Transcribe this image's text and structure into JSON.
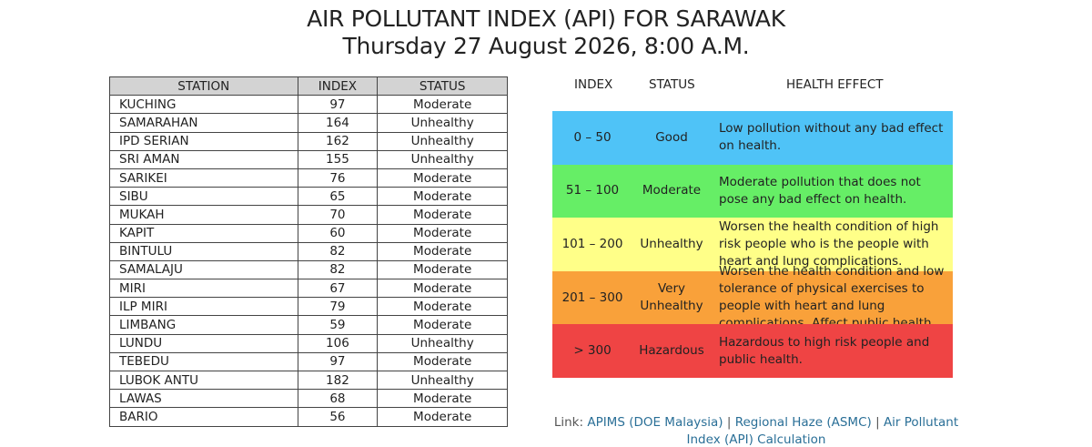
{
  "title": {
    "line1": "AIR POLLUTANT INDEX (API) FOR SARAWAK",
    "line2": "Thursday 27 August 2026, 8:00 A.M."
  },
  "station_table": {
    "headers": [
      "STATION",
      "INDEX",
      "STATUS"
    ],
    "rows": [
      {
        "station": "KUCHING",
        "index": "97",
        "status": "Moderate"
      },
      {
        "station": "SAMARAHAN",
        "index": "164",
        "status": "Unhealthy"
      },
      {
        "station": "IPD SERIAN",
        "index": "162",
        "status": "Unhealthy"
      },
      {
        "station": "SRI AMAN",
        "index": "155",
        "status": "Unhealthy"
      },
      {
        "station": "SARIKEI",
        "index": "76",
        "status": "Moderate"
      },
      {
        "station": "SIBU",
        "index": "65",
        "status": "Moderate"
      },
      {
        "station": "MUKAH",
        "index": "70",
        "status": "Moderate"
      },
      {
        "station": "KAPIT",
        "index": "60",
        "status": "Moderate"
      },
      {
        "station": "BINTULU",
        "index": "82",
        "status": "Moderate"
      },
      {
        "station": "SAMALAJU",
        "index": "82",
        "status": "Moderate"
      },
      {
        "station": "MIRI",
        "index": "67",
        "status": "Moderate"
      },
      {
        "station": "ILP MIRI",
        "index": "79",
        "status": "Moderate"
      },
      {
        "station": "LIMBANG",
        "index": "59",
        "status": "Moderate"
      },
      {
        "station": "LUNDU",
        "index": "106",
        "status": "Unhealthy"
      },
      {
        "station": "TEBEDU",
        "index": "97",
        "status": "Moderate"
      },
      {
        "station": "LUBOK ANTU",
        "index": "182",
        "status": "Unhealthy"
      },
      {
        "station": "LAWAS",
        "index": "68",
        "status": "Moderate"
      },
      {
        "station": "BARIO",
        "index": "56",
        "status": "Moderate"
      }
    ]
  },
  "legend": {
    "headers": {
      "index": "INDEX",
      "status": "STATUS",
      "effect": "HEALTH EFFECT"
    },
    "rows": [
      {
        "index": "0 – 50",
        "status": "Good",
        "effect": "Low pollution without any bad effect on health.",
        "color": "#4fc3f7"
      },
      {
        "index": "51 – 100",
        "status": "Moderate",
        "effect": "Moderate pollution that does not pose any bad effect on health.",
        "color": "#66ee66"
      },
      {
        "index": "101 – 200",
        "status": "Unhealthy",
        "effect": "Worsen the health condition of high risk people who is the people with heart and lung complications.",
        "color": "#ffff88"
      },
      {
        "index": "201 – 300",
        "status": "Very Unhealthy",
        "effect": "Worsen the health condition and low tolerance of physical exercises to people with heart and lung complications. Affect public health.",
        "color": "#f9a13a"
      },
      {
        "index": "> 300",
        "status": "Hazardous",
        "effect": "Hazardous to high risk people and public health.",
        "color": "#ef4444"
      }
    ]
  },
  "links": {
    "prefix": "Link:",
    "items": [
      "APIMS (DOE Malaysia)",
      "Regional Haze (ASMC)",
      "Air Pollutant Index (API) Calculation"
    ],
    "separator": "|"
  }
}
